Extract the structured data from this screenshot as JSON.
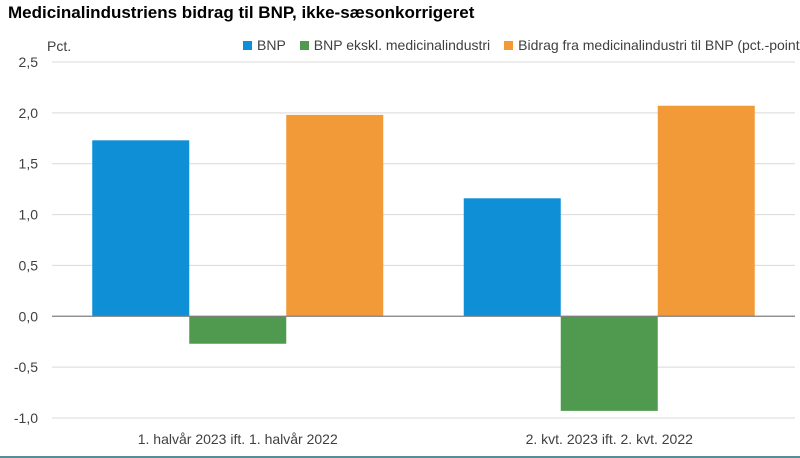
{
  "chart_data": {
    "type": "bar",
    "title": "Medicinalindustriens bidrag til BNP, ikke-sæsonkorrigeret",
    "ylabel": "Pct.",
    "xlabel": "",
    "ylim": [
      -1.0,
      2.5
    ],
    "yticks": [
      "2,5",
      "2,0",
      "1,5",
      "1,0",
      "0,5",
      "0,0",
      "-0,5",
      "-1,0"
    ],
    "ytick_values": [
      2.5,
      2.0,
      1.5,
      1.0,
      0.5,
      0.0,
      -0.5,
      -1.0
    ],
    "grid": true,
    "legend_position": "top",
    "categories": [
      "1. halvår 2023 ift. 1. halvår 2022",
      "2. kvt. 2023 ift. 2. kvt. 2022"
    ],
    "series": [
      {
        "name": "BNP",
        "color": "#0e8fd6",
        "values": [
          1.73,
          1.16
        ]
      },
      {
        "name": "BNP ekskl. medicinalindustri",
        "color": "#4f9a4f",
        "values": [
          -0.27,
          -0.93
        ]
      },
      {
        "name": "Bidrag fra medicinalindustri til BNP (pct.-point)",
        "color": "#f29a38",
        "values": [
          1.98,
          2.07
        ]
      }
    ]
  }
}
